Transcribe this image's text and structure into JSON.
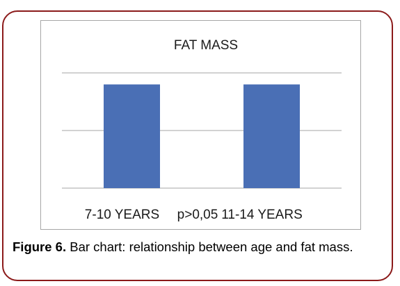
{
  "figure": {
    "label": "Figure 6.",
    "text": " Bar chart: relationship between age and fat mass."
  },
  "chart_data": {
    "type": "bar",
    "title": "FAT MASS",
    "categories": [
      "7-10 YEARS",
      "11-14 YEARS"
    ],
    "values": [
      0.9,
      0.9
    ],
    "annotation": "p>0,05",
    "xlabel": "",
    "ylabel": "",
    "ylim": [
      0,
      1
    ],
    "grid": true,
    "legend": "none",
    "bar_color": "#4a6fb5",
    "grid_color": "#a6a6a6"
  }
}
